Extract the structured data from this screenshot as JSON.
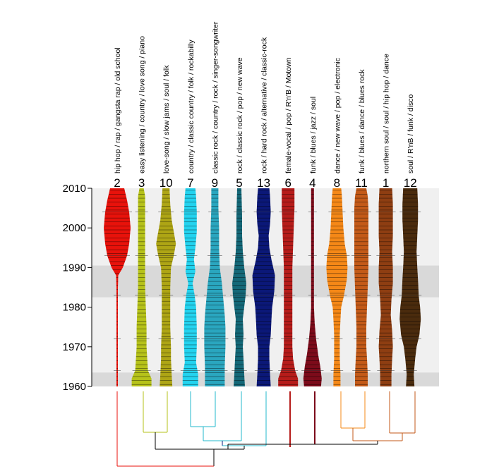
{
  "chart_data": {
    "type": "violin-dendrogram",
    "title": "",
    "xlabel": "",
    "ylabel": "",
    "ylim": [
      1960,
      2010
    ],
    "yticks": [
      1960,
      1970,
      1980,
      1990,
      2000,
      2010
    ],
    "highlight_bands": [
      [
        1960,
        1963.5
      ],
      [
        1982.5,
        1990.5
      ]
    ],
    "clusters": [
      {
        "number": "2",
        "tags": "hip hop / rap / gangsta rap / old school",
        "color": "#e8120b",
        "profile": [
          [
            1960,
            1
          ],
          [
            1965,
            1
          ],
          [
            1970,
            1
          ],
          [
            1975,
            1
          ],
          [
            1980,
            1
          ],
          [
            1985,
            1
          ],
          [
            1988,
            1.5
          ],
          [
            1990,
            8
          ],
          [
            1993,
            14
          ],
          [
            1996,
            17
          ],
          [
            2000,
            19
          ],
          [
            2004,
            17
          ],
          [
            2007,
            14
          ],
          [
            2010,
            10
          ]
        ]
      },
      {
        "number": "3",
        "tags": "easy listening / country / love song / piano",
        "color": "#b6c21a",
        "profile": [
          [
            1960,
            14
          ],
          [
            1962,
            14
          ],
          [
            1964,
            9
          ],
          [
            1967,
            8
          ],
          [
            1970,
            7
          ],
          [
            1975,
            7
          ],
          [
            1980,
            6
          ],
          [
            1985,
            5
          ],
          [
            1990,
            5
          ],
          [
            1995,
            5
          ],
          [
            2000,
            5
          ],
          [
            2005,
            5
          ],
          [
            2008,
            5
          ],
          [
            2010,
            3
          ]
        ]
      },
      {
        "number": "10",
        "tags": "love-song / slow jams / soul / folk",
        "color": "#aea515",
        "profile": [
          [
            1960,
            9
          ],
          [
            1963,
            8
          ],
          [
            1967,
            7
          ],
          [
            1970,
            7
          ],
          [
            1975,
            6
          ],
          [
            1980,
            6
          ],
          [
            1985,
            6
          ],
          [
            1990,
            7
          ],
          [
            1993,
            11
          ],
          [
            1996,
            14
          ],
          [
            1999,
            11
          ],
          [
            2002,
            8
          ],
          [
            2006,
            6
          ],
          [
            2010,
            5
          ]
        ]
      },
      {
        "number": "7",
        "tags": "country / classic country / folk / rockabilly",
        "color": "#23d3ef",
        "profile": [
          [
            1960,
            11
          ],
          [
            1963,
            11
          ],
          [
            1966,
            8
          ],
          [
            1970,
            9
          ],
          [
            1975,
            9
          ],
          [
            1980,
            8
          ],
          [
            1983,
            6
          ],
          [
            1986,
            3
          ],
          [
            1989,
            7
          ],
          [
            1992,
            5
          ],
          [
            1995,
            7
          ],
          [
            1999,
            9
          ],
          [
            2004,
            9
          ],
          [
            2008,
            8
          ],
          [
            2010,
            7
          ]
        ]
      },
      {
        "number": "9",
        "tags": "classic rock / country / rock / singer-songwriter",
        "color": "#2aa6bf",
        "profile": [
          [
            1960,
            14
          ],
          [
            1965,
            14
          ],
          [
            1970,
            15
          ],
          [
            1975,
            15
          ],
          [
            1978,
            14
          ],
          [
            1982,
            12
          ],
          [
            1986,
            10
          ],
          [
            1990,
            7
          ],
          [
            1995,
            6
          ],
          [
            2000,
            6
          ],
          [
            2005,
            5
          ],
          [
            2010,
            5
          ]
        ]
      },
      {
        "number": "5",
        "tags": "rock / classic rock / pop / new wave",
        "color": "#146878",
        "profile": [
          [
            1960,
            8
          ],
          [
            1963,
            7
          ],
          [
            1967,
            6
          ],
          [
            1970,
            5
          ],
          [
            1973,
            6
          ],
          [
            1977,
            5
          ],
          [
            1980,
            7
          ],
          [
            1983,
            9
          ],
          [
            1986,
            10
          ],
          [
            1990,
            7
          ],
          [
            1994,
            5
          ],
          [
            1998,
            4
          ],
          [
            2003,
            4
          ],
          [
            2010,
            3
          ]
        ]
      },
      {
        "number": "13",
        "tags": "rock / hard rock / alternative / classic-rock",
        "color": "#0b1878",
        "profile": [
          [
            1960,
            10
          ],
          [
            1963,
            9
          ],
          [
            1967,
            8
          ],
          [
            1970,
            8
          ],
          [
            1973,
            10
          ],
          [
            1977,
            11
          ],
          [
            1980,
            12
          ],
          [
            1984,
            15
          ],
          [
            1988,
            16
          ],
          [
            1992,
            11
          ],
          [
            1995,
            8
          ],
          [
            1998,
            7
          ],
          [
            2001,
            9
          ],
          [
            2004,
            10
          ],
          [
            2008,
            9
          ],
          [
            2010,
            8
          ]
        ]
      },
      {
        "number": "6",
        "tags": "female-vocal / pop / R'n'B / Motown",
        "color": "#b61c1a",
        "profile": [
          [
            1960,
            14
          ],
          [
            1962,
            14
          ],
          [
            1964,
            10
          ],
          [
            1967,
            7
          ],
          [
            1970,
            6
          ],
          [
            1975,
            6
          ],
          [
            1980,
            6
          ],
          [
            1985,
            6
          ],
          [
            1990,
            6
          ],
          [
            1995,
            7
          ],
          [
            2000,
            8
          ],
          [
            2005,
            9
          ],
          [
            2010,
            9
          ]
        ]
      },
      {
        "number": "4",
        "tags": "funk / blues / jazz / soul",
        "color": "#7c0b1a",
        "profile": [
          [
            1960,
            12
          ],
          [
            1962,
            13
          ],
          [
            1965,
            11
          ],
          [
            1968,
            8
          ],
          [
            1972,
            5
          ],
          [
            1976,
            3
          ],
          [
            1980,
            2
          ],
          [
            1985,
            2
          ],
          [
            1990,
            2
          ],
          [
            1995,
            2
          ],
          [
            2000,
            2
          ],
          [
            2005,
            2
          ],
          [
            2010,
            2
          ]
        ]
      },
      {
        "number": "8",
        "tags": "dance / new wave / pop / electronic",
        "color": "#f58817",
        "profile": [
          [
            1960,
            5
          ],
          [
            1963,
            5
          ],
          [
            1967,
            4
          ],
          [
            1970,
            4
          ],
          [
            1973,
            4
          ],
          [
            1977,
            5
          ],
          [
            1980,
            6
          ],
          [
            1983,
            10
          ],
          [
            1987,
            14
          ],
          [
            1990,
            15
          ],
          [
            1993,
            14
          ],
          [
            1996,
            11
          ],
          [
            2000,
            9
          ],
          [
            2004,
            8
          ],
          [
            2008,
            7
          ],
          [
            2010,
            6
          ]
        ]
      },
      {
        "number": "11",
        "tags": "funk / blues / dance / blues rock",
        "color": "#c35a18",
        "profile": [
          [
            1960,
            9
          ],
          [
            1963,
            9
          ],
          [
            1967,
            8
          ],
          [
            1970,
            7
          ],
          [
            1975,
            7
          ],
          [
            1980,
            8
          ],
          [
            1985,
            9
          ],
          [
            1990,
            10
          ],
          [
            1995,
            10
          ],
          [
            2000,
            10
          ],
          [
            2005,
            10
          ],
          [
            2008,
            9
          ],
          [
            2010,
            7
          ]
        ]
      },
      {
        "number": "1",
        "tags": "northern soul / soul / hip hop / dance",
        "color": "#8e3e12",
        "profile": [
          [
            1960,
            8
          ],
          [
            1963,
            8
          ],
          [
            1967,
            9
          ],
          [
            1970,
            10
          ],
          [
            1974,
            9
          ],
          [
            1978,
            7
          ],
          [
            1982,
            8
          ],
          [
            1986,
            10
          ],
          [
            1990,
            10
          ],
          [
            1994,
            9
          ],
          [
            1998,
            10
          ],
          [
            2002,
            10
          ],
          [
            2006,
            10
          ],
          [
            2010,
            9
          ]
        ]
      },
      {
        "number": "12",
        "tags": "soul / R'nB / funk / disco",
        "color": "#4a2b0d",
        "profile": [
          [
            1960,
            6
          ],
          [
            1963,
            5
          ],
          [
            1967,
            7
          ],
          [
            1970,
            9
          ],
          [
            1973,
            13
          ],
          [
            1977,
            15
          ],
          [
            1980,
            14
          ],
          [
            1983,
            12
          ],
          [
            1987,
            11
          ],
          [
            1990,
            10
          ],
          [
            1994,
            9
          ],
          [
            1998,
            10
          ],
          [
            2002,
            11
          ],
          [
            2006,
            11
          ],
          [
            2010,
            10
          ]
        ]
      }
    ],
    "dendrogram": [
      {
        "x": [
          237,
          237
        ],
        "y": [
          555,
          613
        ],
        "color": "#b6c21a"
      },
      {
        "x": [
          203,
          203
        ],
        "y": [
          555,
          613
        ],
        "color": "#b6c21a"
      },
      {
        "x": [
          203,
          237
        ],
        "y": [
          613,
          613
        ],
        "color": "#b6c21a"
      },
      {
        "x": [
          220,
          220
        ],
        "y": [
          613,
          637
        ],
        "color": "#000000"
      },
      {
        "x": [
          270,
          270
        ],
        "y": [
          555,
          605
        ],
        "color": "#23b8cc"
      },
      {
        "x": [
          305,
          305
        ],
        "y": [
          555,
          605
        ],
        "color": "#23b8cc"
      },
      {
        "x": [
          270,
          305
        ],
        "y": [
          605,
          605
        ],
        "color": "#23b8cc"
      },
      {
        "x": [
          288,
          288
        ],
        "y": [
          605,
          625
        ],
        "color": "#23b8cc"
      },
      {
        "x": [
          342,
          342
        ],
        "y": [
          555,
          625
        ],
        "color": "#23b8cc"
      },
      {
        "x": [
          288,
          342
        ],
        "y": [
          625,
          625
        ],
        "color": "#23b8cc"
      },
      {
        "x": [
          315,
          315
        ],
        "y": [
          625,
          632
        ],
        "color": "#0b1878"
      },
      {
        "x": [
          377,
          377
        ],
        "y": [
          555,
          632
        ],
        "color": "#23b8cc"
      },
      {
        "x": [
          315,
          377
        ],
        "y": [
          632,
          632
        ],
        "color": "#23b8cc"
      },
      {
        "x": [
          346,
          346
        ],
        "y": [
          632,
          637
        ],
        "color": "#000000"
      },
      {
        "x": [
          220,
          346
        ],
        "y": [
          637,
          637
        ],
        "color": "#000000"
      },
      {
        "x": [
          483,
          483
        ],
        "y": [
          555,
          607
        ],
        "color": "#f58817"
      },
      {
        "x": [
          517,
          517
        ],
        "y": [
          555,
          607
        ],
        "color": "#f58817"
      },
      {
        "x": [
          483,
          517
        ],
        "y": [
          607,
          607
        ],
        "color": "#f58817"
      },
      {
        "x": [
          552,
          552
        ],
        "y": [
          555,
          614
        ],
        "color": "#c35a18"
      },
      {
        "x": [
          588,
          588
        ],
        "y": [
          555,
          614
        ],
        "color": "#c35a18"
      },
      {
        "x": [
          552,
          588
        ],
        "y": [
          614,
          614
        ],
        "color": "#c35a18"
      },
      {
        "x": [
          500,
          500
        ],
        "y": [
          607,
          625
        ],
        "color": "#c35a18"
      },
      {
        "x": [
          570,
          570
        ],
        "y": [
          614,
          625
        ],
        "color": "#c35a18"
      },
      {
        "x": [
          500,
          570
        ],
        "y": [
          625,
          625
        ],
        "color": "#c35a18"
      },
      {
        "x": [
          535,
          535
        ],
        "y": [
          625,
          630
        ],
        "color": "#000000"
      },
      {
        "x": [
          411,
          411
        ],
        "y": [
          555,
          634
        ],
        "color": "#b61c1a"
      },
      {
        "x": [
          446,
          446
        ],
        "y": [
          555,
          630
        ],
        "color": "#7c0b1a"
      },
      {
        "x": [
          323,
          535
        ],
        "y": [
          630,
          630
        ],
        "color": "#000000"
      },
      {
        "x": [
          323,
          323
        ],
        "y": [
          630,
          637
        ],
        "color": "#000000"
      },
      {
        "x": [
          303,
          303
        ],
        "y": [
          637,
          661
        ],
        "color": "#000000"
      },
      {
        "x": [
          166,
          166
        ],
        "y": [
          555,
          661
        ],
        "color": "#e8120b"
      },
      {
        "x": [
          166,
          303
        ],
        "y": [
          661,
          661
        ],
        "color": "#e8120b"
      }
    ]
  }
}
